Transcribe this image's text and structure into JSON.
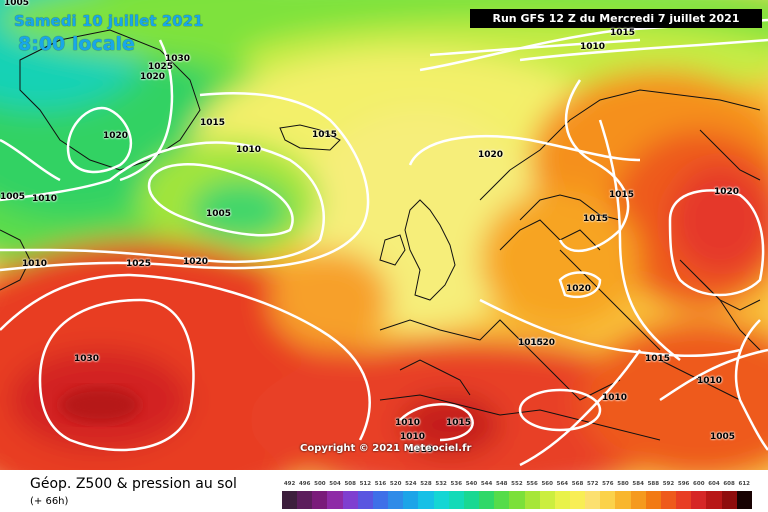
{
  "header": {
    "date": "Samedi 10 juillet 2021",
    "time": "8:00 locale",
    "run": "Run GFS 12 Z du Mercredi 7 juillet 2021"
  },
  "copyright": "Copyright © 2021 Meteociel.fr",
  "legend": {
    "title": "Géop. Z500 & pression au sol",
    "subtitle": "(+ 66h)",
    "scale_values": [
      "492",
      "496",
      "500",
      "504",
      "508",
      "512",
      "516",
      "520",
      "524",
      "528",
      "532",
      "536",
      "540",
      "544",
      "548",
      "552",
      "556",
      "560",
      "564",
      "568",
      "572",
      "576",
      "580",
      "584",
      "588",
      "592",
      "596",
      "600",
      "604",
      "608",
      "612"
    ],
    "scale_colors": [
      "#3d1f3d",
      "#5c1d5c",
      "#7a1b7a",
      "#8e2ba6",
      "#7f3fd0",
      "#5a55e0",
      "#3f6fe8",
      "#2f8be8",
      "#1da4e8",
      "#16c0e6",
      "#14d6d4",
      "#13dab8",
      "#19d892",
      "#2fd868",
      "#55dc4a",
      "#7be03a",
      "#a6e638",
      "#cbee3f",
      "#e9f24a",
      "#f8ee55",
      "#fce070",
      "#fbd24a",
      "#f9b62e",
      "#f59a1e",
      "#f27a14",
      "#ee5a1c",
      "#e83e24",
      "#d62626",
      "#b81616",
      "#8e0c0c",
      "#180202"
    ]
  },
  "isobars": [
    "1005",
    "1010",
    "1015",
    "1030",
    "1025",
    "1020",
    "1020",
    "1015",
    "1010",
    "1015",
    "1020",
    "1005",
    "1010",
    "1005",
    "1010",
    "1025",
    "1020",
    "1030",
    "1020",
    "1015",
    "1015",
    "1020",
    "1020",
    "1015",
    "1015",
    "1010",
    "1010",
    "1010",
    "1010",
    "1015",
    "1010",
    "1005"
  ],
  "colors": {
    "run_bg": "#000000",
    "date_text": "#19a7e8",
    "isobar": "#ffffff"
  }
}
